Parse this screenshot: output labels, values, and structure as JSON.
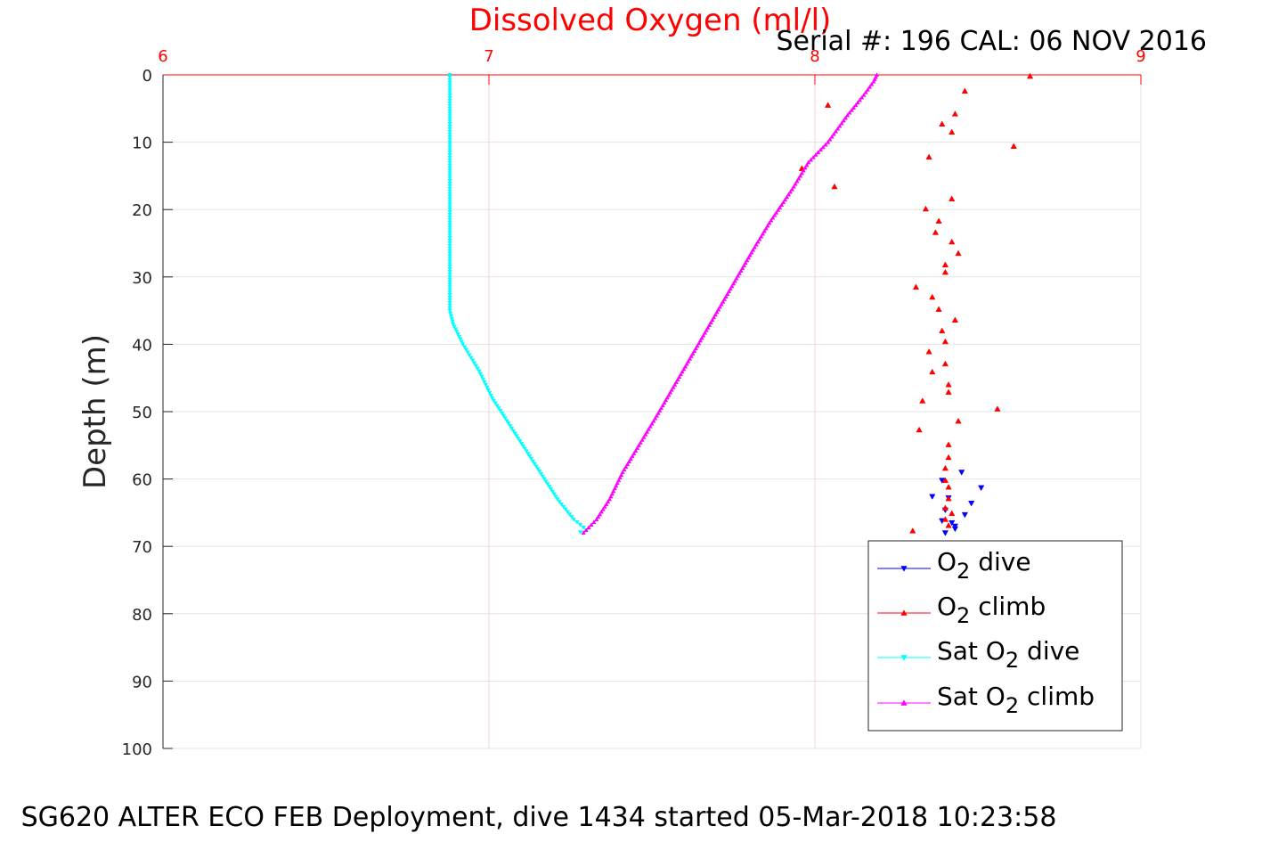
{
  "chart_data": {
    "type": "scatter",
    "title": "Dissolved Oxygen (ml/l)",
    "subtitle": "Serial #: 196  CAL: 06 NOV 2016",
    "xlabel": "",
    "ylabel": "Depth (m)",
    "caption": "SG620 ALTER ECO FEB Deployment, dive 1434 started 05-Mar-2018 10:23:58",
    "xlim": [
      6,
      9
    ],
    "ylim": [
      0,
      100
    ],
    "y_reversed": true,
    "x_axis_position": "top",
    "x_ticks": [
      "6",
      "7",
      "8",
      "9"
    ],
    "y_ticks": [
      "0",
      "10",
      "20",
      "30",
      "40",
      "50",
      "60",
      "70",
      "80",
      "90",
      "100"
    ],
    "grid": true,
    "legend_position": "bottom-right",
    "legend": [
      {
        "pre": "O",
        "sub": "2",
        "post": " dive",
        "color": "#0000ff",
        "marker": "down"
      },
      {
        "pre": "O",
        "sub": "2",
        "post": " climb",
        "color": "#ff0000",
        "marker": "up"
      },
      {
        "pre": "Sat O",
        "sub": "2",
        "post": " dive",
        "color": "#00ffff",
        "marker": "down"
      },
      {
        "pre": "Sat O",
        "sub": "2",
        "post": " climb",
        "color": "#ff00ff",
        "marker": "up"
      }
    ],
    "series": [
      {
        "key": "o2_dive",
        "color": "#0000ff",
        "marker": "down",
        "line": false,
        "points": [
          [
            8.39,
            60.2
          ],
          [
            8.36,
            62.6
          ],
          [
            8.45,
            59.0
          ],
          [
            8.51,
            61.3
          ],
          [
            8.41,
            62.8
          ],
          [
            8.48,
            63.6
          ],
          [
            8.4,
            64.6
          ],
          [
            8.46,
            65.3
          ],
          [
            8.42,
            66.5
          ],
          [
            8.39,
            66.2
          ],
          [
            8.43,
            67.0
          ],
          [
            8.4,
            68.0
          ],
          [
            8.43,
            67.4
          ]
        ]
      },
      {
        "key": "o2_climb",
        "color": "#ff0000",
        "marker": "up",
        "line": false,
        "points": [
          [
            8.66,
            0.2
          ],
          [
            8.46,
            2.4
          ],
          [
            8.04,
            4.5
          ],
          [
            8.39,
            7.3
          ],
          [
            8.43,
            5.8
          ],
          [
            8.42,
            8.5
          ],
          [
            8.61,
            10.6
          ],
          [
            8.35,
            12.2
          ],
          [
            7.96,
            13.9
          ],
          [
            8.06,
            16.6
          ],
          [
            8.42,
            18.4
          ],
          [
            8.34,
            19.9
          ],
          [
            8.38,
            21.7
          ],
          [
            8.37,
            23.4
          ],
          [
            8.42,
            24.8
          ],
          [
            8.44,
            26.5
          ],
          [
            8.4,
            28.2
          ],
          [
            8.4,
            29.3
          ],
          [
            8.31,
            31.5
          ],
          [
            8.36,
            33.0
          ],
          [
            8.38,
            34.8
          ],
          [
            8.43,
            36.4
          ],
          [
            8.39,
            38.0
          ],
          [
            8.4,
            39.6
          ],
          [
            8.35,
            41.1
          ],
          [
            8.4,
            42.9
          ],
          [
            8.36,
            44.1
          ],
          [
            8.41,
            46.0
          ],
          [
            8.41,
            47.1
          ],
          [
            8.33,
            48.4
          ],
          [
            8.56,
            49.6
          ],
          [
            8.44,
            51.4
          ],
          [
            8.32,
            52.7
          ],
          [
            8.41,
            54.9
          ],
          [
            8.41,
            56.8
          ],
          [
            8.4,
            58.4
          ],
          [
            8.4,
            60.2
          ],
          [
            8.41,
            61.2
          ],
          [
            8.41,
            62.9
          ],
          [
            8.4,
            64.3
          ],
          [
            8.42,
            65.1
          ],
          [
            8.4,
            66.0
          ],
          [
            8.41,
            66.9
          ],
          [
            8.3,
            67.7
          ]
        ]
      },
      {
        "key": "sat_o2_dive",
        "color": "#00ffff",
        "marker": "down",
        "line": true,
        "points": [
          [
            6.88,
            0
          ],
          [
            6.88,
            5
          ],
          [
            6.88,
            10
          ],
          [
            6.88,
            15
          ],
          [
            6.88,
            20
          ],
          [
            6.88,
            25
          ],
          [
            6.88,
            30
          ],
          [
            6.88,
            35
          ],
          [
            6.89,
            37
          ],
          [
            6.92,
            40
          ],
          [
            6.97,
            44
          ],
          [
            7.01,
            48
          ],
          [
            7.05,
            51
          ],
          [
            7.09,
            54
          ],
          [
            7.13,
            57
          ],
          [
            7.17,
            60
          ],
          [
            7.21,
            63
          ],
          [
            7.26,
            66
          ],
          [
            7.3,
            67.6
          ],
          [
            7.28,
            67.9
          ]
        ]
      },
      {
        "key": "sat_o2_climb",
        "color": "#ff00ff",
        "marker": "up",
        "line": true,
        "points": [
          [
            7.29,
            68
          ],
          [
            7.33,
            66
          ],
          [
            7.37,
            63
          ],
          [
            7.41,
            59
          ],
          [
            7.46,
            55
          ],
          [
            7.51,
            51
          ],
          [
            7.57,
            46
          ],
          [
            7.63,
            41
          ],
          [
            7.69,
            36
          ],
          [
            7.75,
            31
          ],
          [
            7.81,
            26
          ],
          [
            7.86,
            22
          ],
          [
            7.93,
            17
          ],
          [
            7.98,
            13
          ],
          [
            8.04,
            10
          ],
          [
            8.1,
            6
          ],
          [
            8.15,
            3
          ],
          [
            8.18,
            1
          ],
          [
            8.19,
            0
          ]
        ]
      }
    ]
  }
}
